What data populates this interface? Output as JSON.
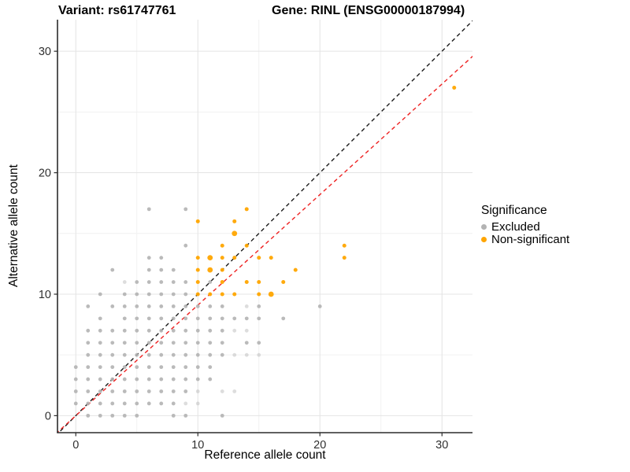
{
  "header": {
    "variant_title": "Variant: rs61747761",
    "gene_title": "Gene: RINL (ENSG00000187994)"
  },
  "chart_data": {
    "type": "scatter",
    "xlabel": "Reference allele count",
    "ylabel": "Alternative allele count",
    "x_ticks": [
      0,
      10,
      20,
      30
    ],
    "y_ticks": [
      0,
      10,
      20,
      30
    ],
    "x_minor": [
      5,
      15,
      25
    ],
    "y_minor": [
      5,
      15,
      25
    ],
    "xlim": [
      -1.5,
      32.5
    ],
    "ylim": [
      -1.4,
      32.6
    ],
    "grid": "major and minor light gray on white, no panel border, black left/bottom axis lines",
    "legend": {
      "title": "Significance",
      "position": "right",
      "items": [
        {
          "label": "Excluded",
          "color": "#B3B3B3"
        },
        {
          "label": "Non-significant",
          "color": "#FFA500"
        }
      ]
    },
    "lines": [
      {
        "name": "identity",
        "slope": 1,
        "intercept": 0,
        "color": "#1a1a1a",
        "dash": "5,4"
      },
      {
        "name": "expected-ratio",
        "slope": 0.91,
        "intercept": 0,
        "color": "#ee2222",
        "dash": "5,4"
      }
    ],
    "series": [
      {
        "name": "Excluded",
        "color": "#B3B3B3",
        "points": [
          [
            1,
            0
          ],
          [
            2,
            0
          ],
          [
            3,
            0
          ],
          [
            4,
            0
          ],
          [
            5,
            0
          ],
          [
            8,
            0
          ],
          [
            9,
            0
          ],
          [
            12,
            0
          ],
          [
            0,
            1
          ],
          [
            1,
            1
          ],
          [
            2,
            1
          ],
          [
            3,
            1
          ],
          [
            4,
            1
          ],
          [
            5,
            1
          ],
          [
            6,
            1
          ],
          [
            7,
            1
          ],
          [
            8,
            1
          ],
          [
            9,
            1
          ],
          [
            10,
            1
          ],
          [
            0,
            2
          ],
          [
            1,
            2
          ],
          [
            2,
            2
          ],
          [
            3,
            2
          ],
          [
            4,
            2
          ],
          [
            5,
            2
          ],
          [
            6,
            2
          ],
          [
            7,
            2
          ],
          [
            8,
            2
          ],
          [
            9,
            2
          ],
          [
            10,
            2
          ],
          [
            12,
            2
          ],
          [
            13,
            2
          ],
          [
            0,
            3
          ],
          [
            1,
            3
          ],
          [
            2,
            3
          ],
          [
            3,
            3
          ],
          [
            4,
            3
          ],
          [
            5,
            3
          ],
          [
            6,
            3
          ],
          [
            7,
            3
          ],
          [
            8,
            3
          ],
          [
            9,
            3
          ],
          [
            10,
            3
          ],
          [
            11,
            3
          ],
          [
            0,
            4
          ],
          [
            1,
            4
          ],
          [
            2,
            4
          ],
          [
            3,
            4
          ],
          [
            4,
            4
          ],
          [
            5,
            4
          ],
          [
            6,
            4
          ],
          [
            7,
            4
          ],
          [
            8,
            4
          ],
          [
            9,
            4
          ],
          [
            10,
            4
          ],
          [
            11,
            4
          ],
          [
            1,
            5
          ],
          [
            2,
            5
          ],
          [
            3,
            5
          ],
          [
            4,
            5
          ],
          [
            5,
            5
          ],
          [
            6,
            5
          ],
          [
            7,
            5
          ],
          [
            8,
            5
          ],
          [
            9,
            5
          ],
          [
            10,
            5
          ],
          [
            11,
            5
          ],
          [
            12,
            5
          ],
          [
            13,
            5
          ],
          [
            14,
            5
          ],
          [
            15,
            5
          ],
          [
            1,
            6
          ],
          [
            2,
            6
          ],
          [
            3,
            6
          ],
          [
            4,
            6
          ],
          [
            5,
            6
          ],
          [
            6,
            6
          ],
          [
            7,
            6
          ],
          [
            8,
            6
          ],
          [
            9,
            6
          ],
          [
            10,
            6
          ],
          [
            11,
            6
          ],
          [
            12,
            6
          ],
          [
            14,
            6
          ],
          [
            15,
            6
          ],
          [
            1,
            7
          ],
          [
            2,
            7
          ],
          [
            3,
            7
          ],
          [
            4,
            7
          ],
          [
            5,
            7
          ],
          [
            6,
            7
          ],
          [
            7,
            7
          ],
          [
            8,
            7
          ],
          [
            9,
            7
          ],
          [
            10,
            7
          ],
          [
            11,
            7
          ],
          [
            12,
            7
          ],
          [
            13,
            7
          ],
          [
            14,
            7
          ],
          [
            2,
            8
          ],
          [
            4,
            8
          ],
          [
            5,
            8
          ],
          [
            6,
            8
          ],
          [
            7,
            8
          ],
          [
            8,
            8
          ],
          [
            9,
            8
          ],
          [
            10,
            8
          ],
          [
            11,
            8
          ],
          [
            12,
            8
          ],
          [
            13,
            8
          ],
          [
            14,
            8
          ],
          [
            15,
            8
          ],
          [
            17,
            8
          ],
          [
            1,
            9
          ],
          [
            3,
            9
          ],
          [
            4,
            9
          ],
          [
            5,
            9
          ],
          [
            6,
            9
          ],
          [
            7,
            9
          ],
          [
            8,
            9
          ],
          [
            9,
            9
          ],
          [
            10,
            9
          ],
          [
            11,
            9
          ],
          [
            12,
            9
          ],
          [
            14,
            9
          ],
          [
            15,
            9
          ],
          [
            20,
            9
          ],
          [
            2,
            10
          ],
          [
            4,
            10
          ],
          [
            5,
            10
          ],
          [
            6,
            10
          ],
          [
            7,
            10
          ],
          [
            8,
            10
          ],
          [
            9,
            10
          ],
          [
            4,
            11
          ],
          [
            5,
            11
          ],
          [
            6,
            11
          ],
          [
            7,
            11
          ],
          [
            8,
            11
          ],
          [
            9,
            11
          ],
          [
            11,
            11
          ],
          [
            3,
            12
          ],
          [
            6,
            12
          ],
          [
            7,
            12
          ],
          [
            8,
            12
          ],
          [
            6,
            13
          ],
          [
            7,
            13
          ],
          [
            9,
            14
          ],
          [
            6,
            17
          ],
          [
            9,
            17
          ]
        ],
        "faint_points": [
          [
            9,
            1
          ],
          [
            10,
            1
          ],
          [
            10,
            2
          ],
          [
            12,
            2
          ],
          [
            13,
            2
          ],
          [
            13,
            5
          ],
          [
            14,
            5
          ],
          [
            15,
            5
          ],
          [
            13,
            7
          ],
          [
            14,
            7
          ],
          [
            14,
            9
          ],
          [
            4,
            11
          ]
        ]
      },
      {
        "name": "Non-significant",
        "color": "#FFA500",
        "points": [
          [
            10,
            10
          ],
          [
            11,
            10
          ],
          [
            12,
            10
          ],
          [
            13,
            10
          ],
          [
            15,
            10
          ],
          [
            16,
            10
          ],
          [
            10,
            11
          ],
          [
            12,
            11
          ],
          [
            14,
            11
          ],
          [
            15,
            11
          ],
          [
            17,
            11
          ],
          [
            10,
            12
          ],
          [
            11,
            12
          ],
          [
            12,
            12
          ],
          [
            18,
            12
          ],
          [
            10,
            13
          ],
          [
            11,
            13
          ],
          [
            12,
            13
          ],
          [
            13,
            13
          ],
          [
            15,
            13
          ],
          [
            16,
            13
          ],
          [
            22,
            13
          ],
          [
            12,
            14
          ],
          [
            14,
            14
          ],
          [
            22,
            14
          ],
          [
            13,
            15
          ],
          [
            10,
            16
          ],
          [
            13,
            16
          ],
          [
            14,
            17
          ],
          [
            31,
            27
          ]
        ],
        "large_points": [
          [
            16,
            10
          ],
          [
            13,
            15
          ],
          [
            11,
            13
          ],
          [
            11,
            12
          ]
        ]
      }
    ]
  },
  "colors": {
    "axis_line": "#2b2b2b",
    "tick_text": "#303030",
    "grid_major": "#e4e4e4",
    "grid_minor": "#f1f1f1",
    "gray_point": "#B3B3B3",
    "orange_point": "#FFA500"
  }
}
